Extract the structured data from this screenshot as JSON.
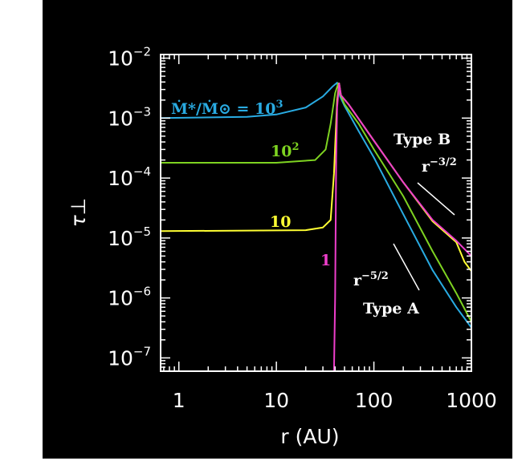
{
  "chart_data": {
    "type": "line",
    "xlabel": "r (AU)",
    "ylabel": "τ⊥",
    "xscale": "log",
    "yscale": "log",
    "xlim": [
      0.65,
      1000
    ],
    "ylim": [
      6e-08,
      0.0115
    ],
    "x_ticks": [
      {
        "value": 1,
        "label": "1"
      },
      {
        "value": 10,
        "label": "10"
      },
      {
        "value": 100,
        "label": "100"
      },
      {
        "value": 1000,
        "label": "1000"
      }
    ],
    "y_ticks": [
      {
        "value": 1e-07,
        "base": "10",
        "exp": "−7"
      },
      {
        "value": 1e-06,
        "base": "10",
        "exp": "−6"
      },
      {
        "value": 1e-05,
        "base": "10",
        "exp": "−5"
      },
      {
        "value": 0.0001,
        "base": "10",
        "exp": "−4"
      },
      {
        "value": 0.001,
        "base": "10",
        "exp": "−3"
      },
      {
        "value": 0.01,
        "base": "10",
        "exp": "−2"
      }
    ],
    "series": [
      {
        "name": "Ṁ*/Ṁ⊙ = 10³",
        "color": "#29abe2",
        "points": [
          [
            0.65,
            0.001
          ],
          [
            5,
            0.00105
          ],
          [
            10,
            0.00115
          ],
          [
            20,
            0.0015
          ],
          [
            30,
            0.0023
          ],
          [
            38,
            0.0034
          ],
          [
            42,
            0.0039
          ],
          [
            45,
            0.0023
          ],
          [
            50,
            0.0016
          ],
          [
            70,
            0.0006
          ],
          [
            100,
            0.00022
          ],
          [
            200,
            2.5e-05
          ],
          [
            400,
            2.9e-06
          ],
          [
            700,
            7e-07
          ],
          [
            1000,
            3.2e-07
          ]
        ]
      },
      {
        "name": "10²",
        "color": "#7ed321",
        "points": [
          [
            0.65,
            0.00018
          ],
          [
            10,
            0.00018
          ],
          [
            25,
            0.0002
          ],
          [
            32,
            0.0003
          ],
          [
            36,
            0.0008
          ],
          [
            40,
            0.0026
          ],
          [
            43,
            0.0038
          ],
          [
            45,
            0.0025
          ],
          [
            50,
            0.0017
          ],
          [
            70,
            0.0008
          ],
          [
            100,
            0.0003
          ],
          [
            200,
            5e-05
          ],
          [
            400,
            6e-06
          ],
          [
            700,
            1.2e-06
          ],
          [
            1000,
            4e-07
          ]
        ]
      },
      {
        "name": "10",
        "color": "#ffff33",
        "points": [
          [
            0.65,
            1.3e-05
          ],
          [
            20,
            1.35e-05
          ],
          [
            30,
            1.5e-05
          ],
          [
            36,
            2e-05
          ],
          [
            39,
            0.00012
          ],
          [
            42,
            0.002
          ],
          [
            44,
            0.0038
          ],
          [
            46,
            0.0024
          ],
          [
            55,
            0.0017
          ],
          [
            100,
            0.00042
          ],
          [
            200,
            8.5e-05
          ],
          [
            400,
            1.9e-05
          ],
          [
            700,
            8.5e-06
          ],
          [
            850,
            4e-06
          ],
          [
            1000,
            2.8e-06
          ]
        ]
      },
      {
        "name": "1",
        "color": "#ee3ecb",
        "points": [
          [
            39,
            6e-08
          ],
          [
            40,
            1e-06
          ],
          [
            41,
            0.0002
          ],
          [
            42,
            0.0015
          ],
          [
            44,
            0.0038
          ],
          [
            46,
            0.0024
          ],
          [
            55,
            0.0017
          ],
          [
            100,
            0.00042
          ],
          [
            200,
            8.5e-05
          ],
          [
            400,
            2e-05
          ],
          [
            700,
            9e-06
          ],
          [
            1000,
            5e-06
          ]
        ]
      }
    ],
    "labels": {
      "series_main": "Ṁ*/Ṁ⊙ = 10",
      "series_main_exp": "3",
      "s2_base": "10",
      "s2_exp": "2",
      "s3": "10",
      "s4": "1",
      "typeB": "Type B",
      "typeA": "Type A",
      "slopeB_base": "r",
      "slopeB_exp": "−3/2",
      "slopeA_base": "r",
      "slopeA_exp": "−5/2"
    }
  }
}
